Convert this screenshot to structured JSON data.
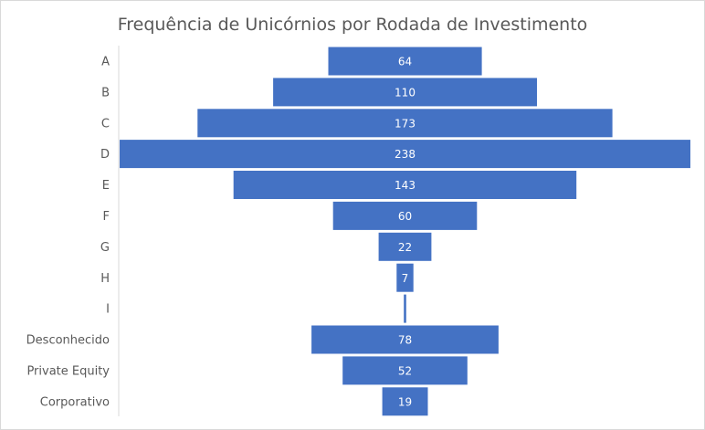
{
  "chart_data": {
    "type": "bar",
    "orientation": "horizontal",
    "style": "funnel",
    "title": "Frequência de Unicórnios por Rodada de Investimento",
    "categories": [
      "A",
      "B",
      "C",
      "D",
      "E",
      "F",
      "G",
      "H",
      "I",
      "Desconhecido",
      "Private Equity",
      "Corporativo"
    ],
    "values": [
      64,
      110,
      173,
      238,
      143,
      60,
      22,
      7,
      1,
      78,
      52,
      19
    ],
    "data_labels": [
      "64",
      "110",
      "173",
      "238",
      "143",
      "60",
      "22",
      "7",
      "",
      "78",
      "52",
      "19"
    ],
    "bar_color": "#4472c4",
    "label_color": "#ffffff",
    "axis_line_color": "#d9d9d9",
    "grid": false,
    "legend": false
  }
}
